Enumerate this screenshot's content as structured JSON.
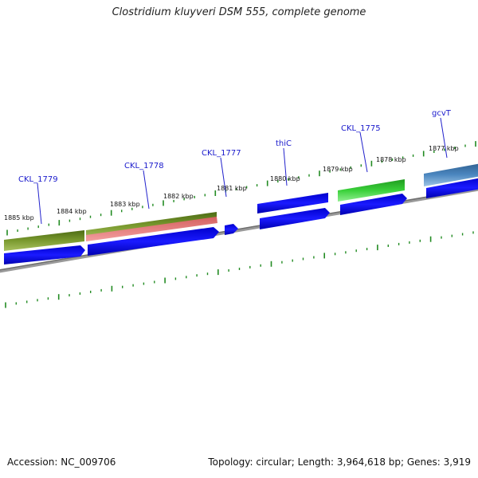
{
  "title": "Clostridium kluyveri DSM 555, complete genome",
  "footer": {
    "accession": "Accession: NC_009706",
    "summary": "Topology: circular; Length: 3,964,618 bp; Genes: 3,919"
  },
  "tick_labels": [
    "1885 kbp",
    "1884 kbp",
    "1883 kbp",
    "1882 kbp",
    "1881 kbp",
    "1880 kbp",
    "1879 kbp",
    "1878 kbp",
    "1877 kbp"
  ],
  "gene_labels": [
    "CKL_1779",
    "CKL_1778",
    "CKL_1777",
    "thiC",
    "CKL_1775",
    "gcvT"
  ],
  "colors": {
    "tick": "#228b22",
    "cds_blue": "#0000ee",
    "backbone": "#808080",
    "olive": "#6b8e23",
    "pink": "#f08080",
    "green": "#32cd32",
    "steelblue": "#4682b4",
    "label_blue": "#1a1acc"
  }
}
